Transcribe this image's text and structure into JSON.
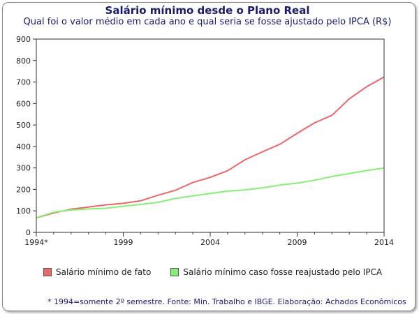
{
  "chart_data": {
    "type": "line",
    "title": "Salário mínimo desde o Plano Real",
    "subtitle": "Qual foi o valor médio em cada ano e qual seria se fosse ajustado pelo IPCA (R$)",
    "x": [
      1994,
      1995,
      1996,
      1997,
      1998,
      1999,
      2000,
      2001,
      2002,
      2003,
      2004,
      2005,
      2006,
      2007,
      2008,
      2009,
      2010,
      2011,
      2012,
      2013,
      2014
    ],
    "x_ticks": [
      1994,
      1999,
      2004,
      2009,
      2014
    ],
    "x_tick_labels": [
      "1994*",
      "1999",
      "2004",
      "2009",
      "2014"
    ],
    "y_ticks": [
      0,
      100,
      200,
      300,
      400,
      500,
      600,
      700,
      800,
      900
    ],
    "ylim": [
      0,
      900
    ],
    "xlim": [
      1994,
      2014
    ],
    "grid": false,
    "legend_position": "bottom",
    "series": [
      {
        "name": "Salário mínimo de fato",
        "color": "#ee6666",
        "values": [
          68,
          90,
          108,
          118,
          128,
          135,
          147,
          173,
          196,
          232,
          256,
          287,
          338,
          375,
          410,
          461,
          510,
          545,
          622,
          678,
          724
        ]
      },
      {
        "name": "Salário mínimo caso fosse reajustado pelo IPCA",
        "color": "#88ee77",
        "values": [
          68,
          94,
          104,
          109,
          112,
          122,
          130,
          140,
          158,
          170,
          181,
          192,
          198,
          207,
          220,
          229,
          243,
          260,
          274,
          288,
          300
        ]
      }
    ],
    "footnote": "* 1994=somente 2º semestre. Fonte: Min. Trabalho e IBGE. Elaboração: Achados Econômicos"
  }
}
